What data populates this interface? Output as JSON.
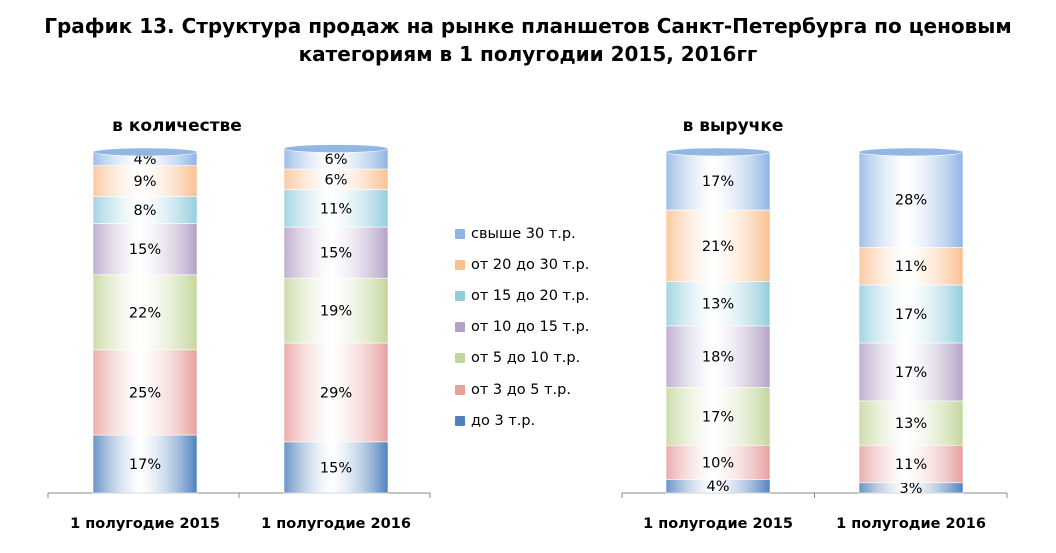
{
  "title_line1": "График 13. Структура продаж на рынке планшетов Санкт-Петербурга по ценовым",
  "title_line2": "категориям в 1 полугодии 2015, 2016гг",
  "legend": {
    "items": [
      {
        "label": "свыше 30 т.р.",
        "color": "#8eb4e3"
      },
      {
        "label": "от 20 до 30 т.р.",
        "color": "#fac090"
      },
      {
        "label": "от 15 до 20 т.р.",
        "color": "#93cddd"
      },
      {
        "label": "от 10 до 15 т.р.",
        "color": "#b3a2c7"
      },
      {
        "label": "от 5 до 10 т.р.",
        "color": "#c3d69b"
      },
      {
        "label": "от 3 до 5 т.р.",
        "color": "#e6a09e"
      },
      {
        "label": "до 3 т.р.",
        "color": "#4f81bd"
      }
    ]
  },
  "chart_data": [
    {
      "type": "bar",
      "stacked": true,
      "title": "в количестве",
      "categories": [
        "1 полугодие 2015",
        "1 полугодие 2016"
      ],
      "ylim": [
        0,
        100
      ],
      "series": [
        {
          "name": "до 3 т.р.",
          "values": [
            17,
            15
          ],
          "labels": [
            "17%",
            "15%"
          ]
        },
        {
          "name": "от 3 до 5 т.р.",
          "values": [
            25,
            29
          ],
          "labels": [
            "25%",
            "29%"
          ]
        },
        {
          "name": "от 5 до 10 т.р.",
          "values": [
            22,
            19
          ],
          "labels": [
            "22%",
            "19%"
          ]
        },
        {
          "name": "от 10 до 15 т.р.",
          "values": [
            15,
            15
          ],
          "labels": [
            "15%",
            "15%"
          ]
        },
        {
          "name": "от 15 до 20 т.р.",
          "values": [
            8,
            11
          ],
          "labels": [
            "8%",
            "11%"
          ]
        },
        {
          "name": "от 20 до 30 т.р.",
          "values": [
            9,
            6
          ],
          "labels": [
            "9%",
            "6%"
          ]
        },
        {
          "name": "свыше 30 т.р.",
          "values": [
            4,
            6
          ],
          "labels": [
            "4%",
            "6%"
          ]
        }
      ]
    },
    {
      "type": "bar",
      "stacked": true,
      "title": "в выручке",
      "categories": [
        "1 полугодие 2015",
        "1 полугодие 2016"
      ],
      "ylim": [
        0,
        100
      ],
      "series": [
        {
          "name": "до 3 т.р.",
          "values": [
            4,
            3
          ],
          "labels": [
            "4%",
            "3%"
          ]
        },
        {
          "name": "от 3 до 5 т.р.",
          "values": [
            10,
            11
          ],
          "labels": [
            "10%",
            "11%"
          ]
        },
        {
          "name": "от 5 до 10 т.р.",
          "values": [
            17,
            13
          ],
          "labels": [
            "17%",
            "13%"
          ]
        },
        {
          "name": "от 10 до 15 т.р.",
          "values": [
            18,
            17
          ],
          "labels": [
            "18%",
            "17%"
          ]
        },
        {
          "name": "от 15 до 20 т.р.",
          "values": [
            13,
            17
          ],
          "labels": [
            "13%",
            "17%"
          ]
        },
        {
          "name": "от 20 до 30 т.р.",
          "values": [
            21,
            11
          ],
          "labels": [
            "21%",
            "11%"
          ]
        },
        {
          "name": "свыше 30 т.р.",
          "values": [
            17,
            28
          ],
          "labels": [
            "17%",
            "28%"
          ]
        }
      ]
    }
  ]
}
